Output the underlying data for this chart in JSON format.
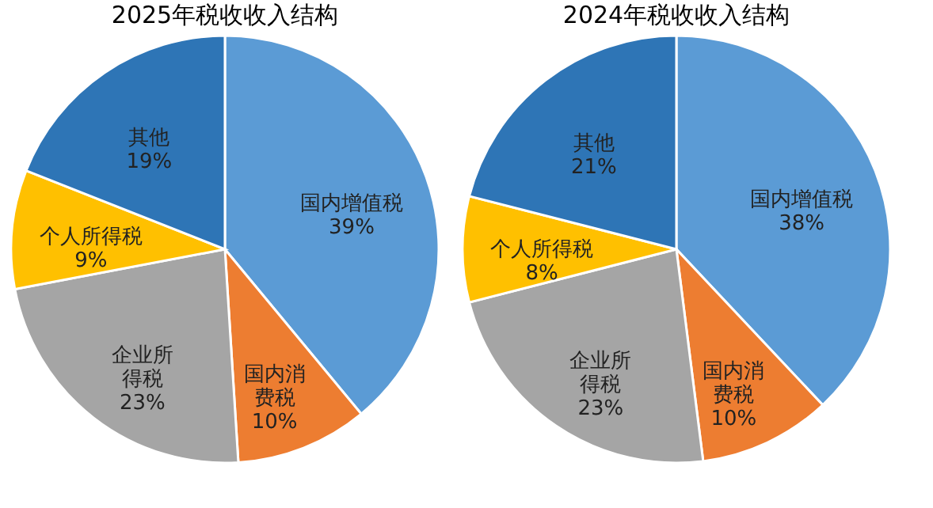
{
  "chart_data": [
    {
      "type": "pie",
      "title": "2025年税收收入结构",
      "categories": [
        "国内增值税",
        "国内消费税",
        "企业所得税",
        "个人所得税",
        "其他"
      ],
      "values": [
        39,
        10,
        23,
        9,
        19
      ],
      "value_labels": [
        "39%",
        "10%",
        "23%",
        "9%",
        "19%"
      ],
      "colors": [
        "#5b9bd5",
        "#ed7d31",
        "#a5a5a5",
        "#ffc000",
        "#2e75b6"
      ]
    },
    {
      "type": "pie",
      "title": "2024年税收收入结构",
      "categories": [
        "国内增值税",
        "国内消费税",
        "企业所得税",
        "个人所得税",
        "其他"
      ],
      "values": [
        38,
        10,
        23,
        8,
        21
      ],
      "value_labels": [
        "38%",
        "10%",
        "23%",
        "8%",
        "21%"
      ],
      "colors": [
        "#5b9bd5",
        "#ed7d31",
        "#a5a5a5",
        "#ffc000",
        "#2e75b6"
      ]
    }
  ]
}
